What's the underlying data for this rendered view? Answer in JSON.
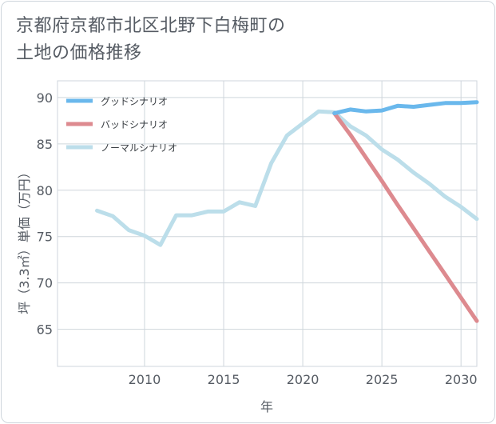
{
  "title_lines": [
    "京都府京都市北区北野下白梅町の",
    "土地の価格推移"
  ],
  "chart_data": {
    "type": "line",
    "title": "京都府京都市北区北野下白梅町の土地の価格推移",
    "xlabel": "年",
    "ylabel": "坪（3.3㎡）単価（万円）",
    "xlim": [
      2004.5,
      2031
    ],
    "ylim": [
      61,
      91.8
    ],
    "xticks": [
      2010,
      2015,
      2020,
      2025,
      2030
    ],
    "yticks": [
      65,
      70,
      75,
      80,
      85,
      90
    ],
    "grid": true,
    "legend_position": "top-left",
    "series": [
      {
        "name": "グッドシナリオ",
        "color": "#6ab8ec",
        "x": [
          2022,
          2023,
          2024,
          2025,
          2026,
          2027,
          2028,
          2029,
          2030,
          2031
        ],
        "values": [
          88.3,
          88.7,
          88.5,
          88.6,
          89.1,
          89.0,
          89.2,
          89.4,
          89.4,
          89.5
        ]
      },
      {
        "name": "バッドシナリオ",
        "color": "#dd8a8f",
        "x": [
          2022,
          2023,
          2024,
          2025,
          2026,
          2027,
          2028,
          2029,
          2030,
          2031
        ],
        "values": [
          88.3,
          86.0,
          83.5,
          81.0,
          78.4,
          75.9,
          73.4,
          70.9,
          68.4,
          65.9
        ]
      },
      {
        "name": "ノーマルシナリオ",
        "color": "#bcdeea",
        "x": [
          2007,
          2008,
          2009,
          2010,
          2011,
          2012,
          2013,
          2014,
          2015,
          2016,
          2017,
          2018,
          2019,
          2020,
          2021,
          2022,
          2023,
          2024,
          2025,
          2026,
          2027,
          2028,
          2029,
          2030,
          2031
        ],
        "values": [
          77.8,
          77.2,
          75.7,
          75.1,
          74.1,
          77.3,
          77.3,
          77.7,
          77.7,
          78.7,
          78.3,
          82.9,
          85.9,
          87.2,
          88.5,
          88.4,
          86.9,
          85.9,
          84.4,
          83.3,
          81.9,
          80.7,
          79.3,
          78.2,
          76.9
        ]
      }
    ]
  }
}
